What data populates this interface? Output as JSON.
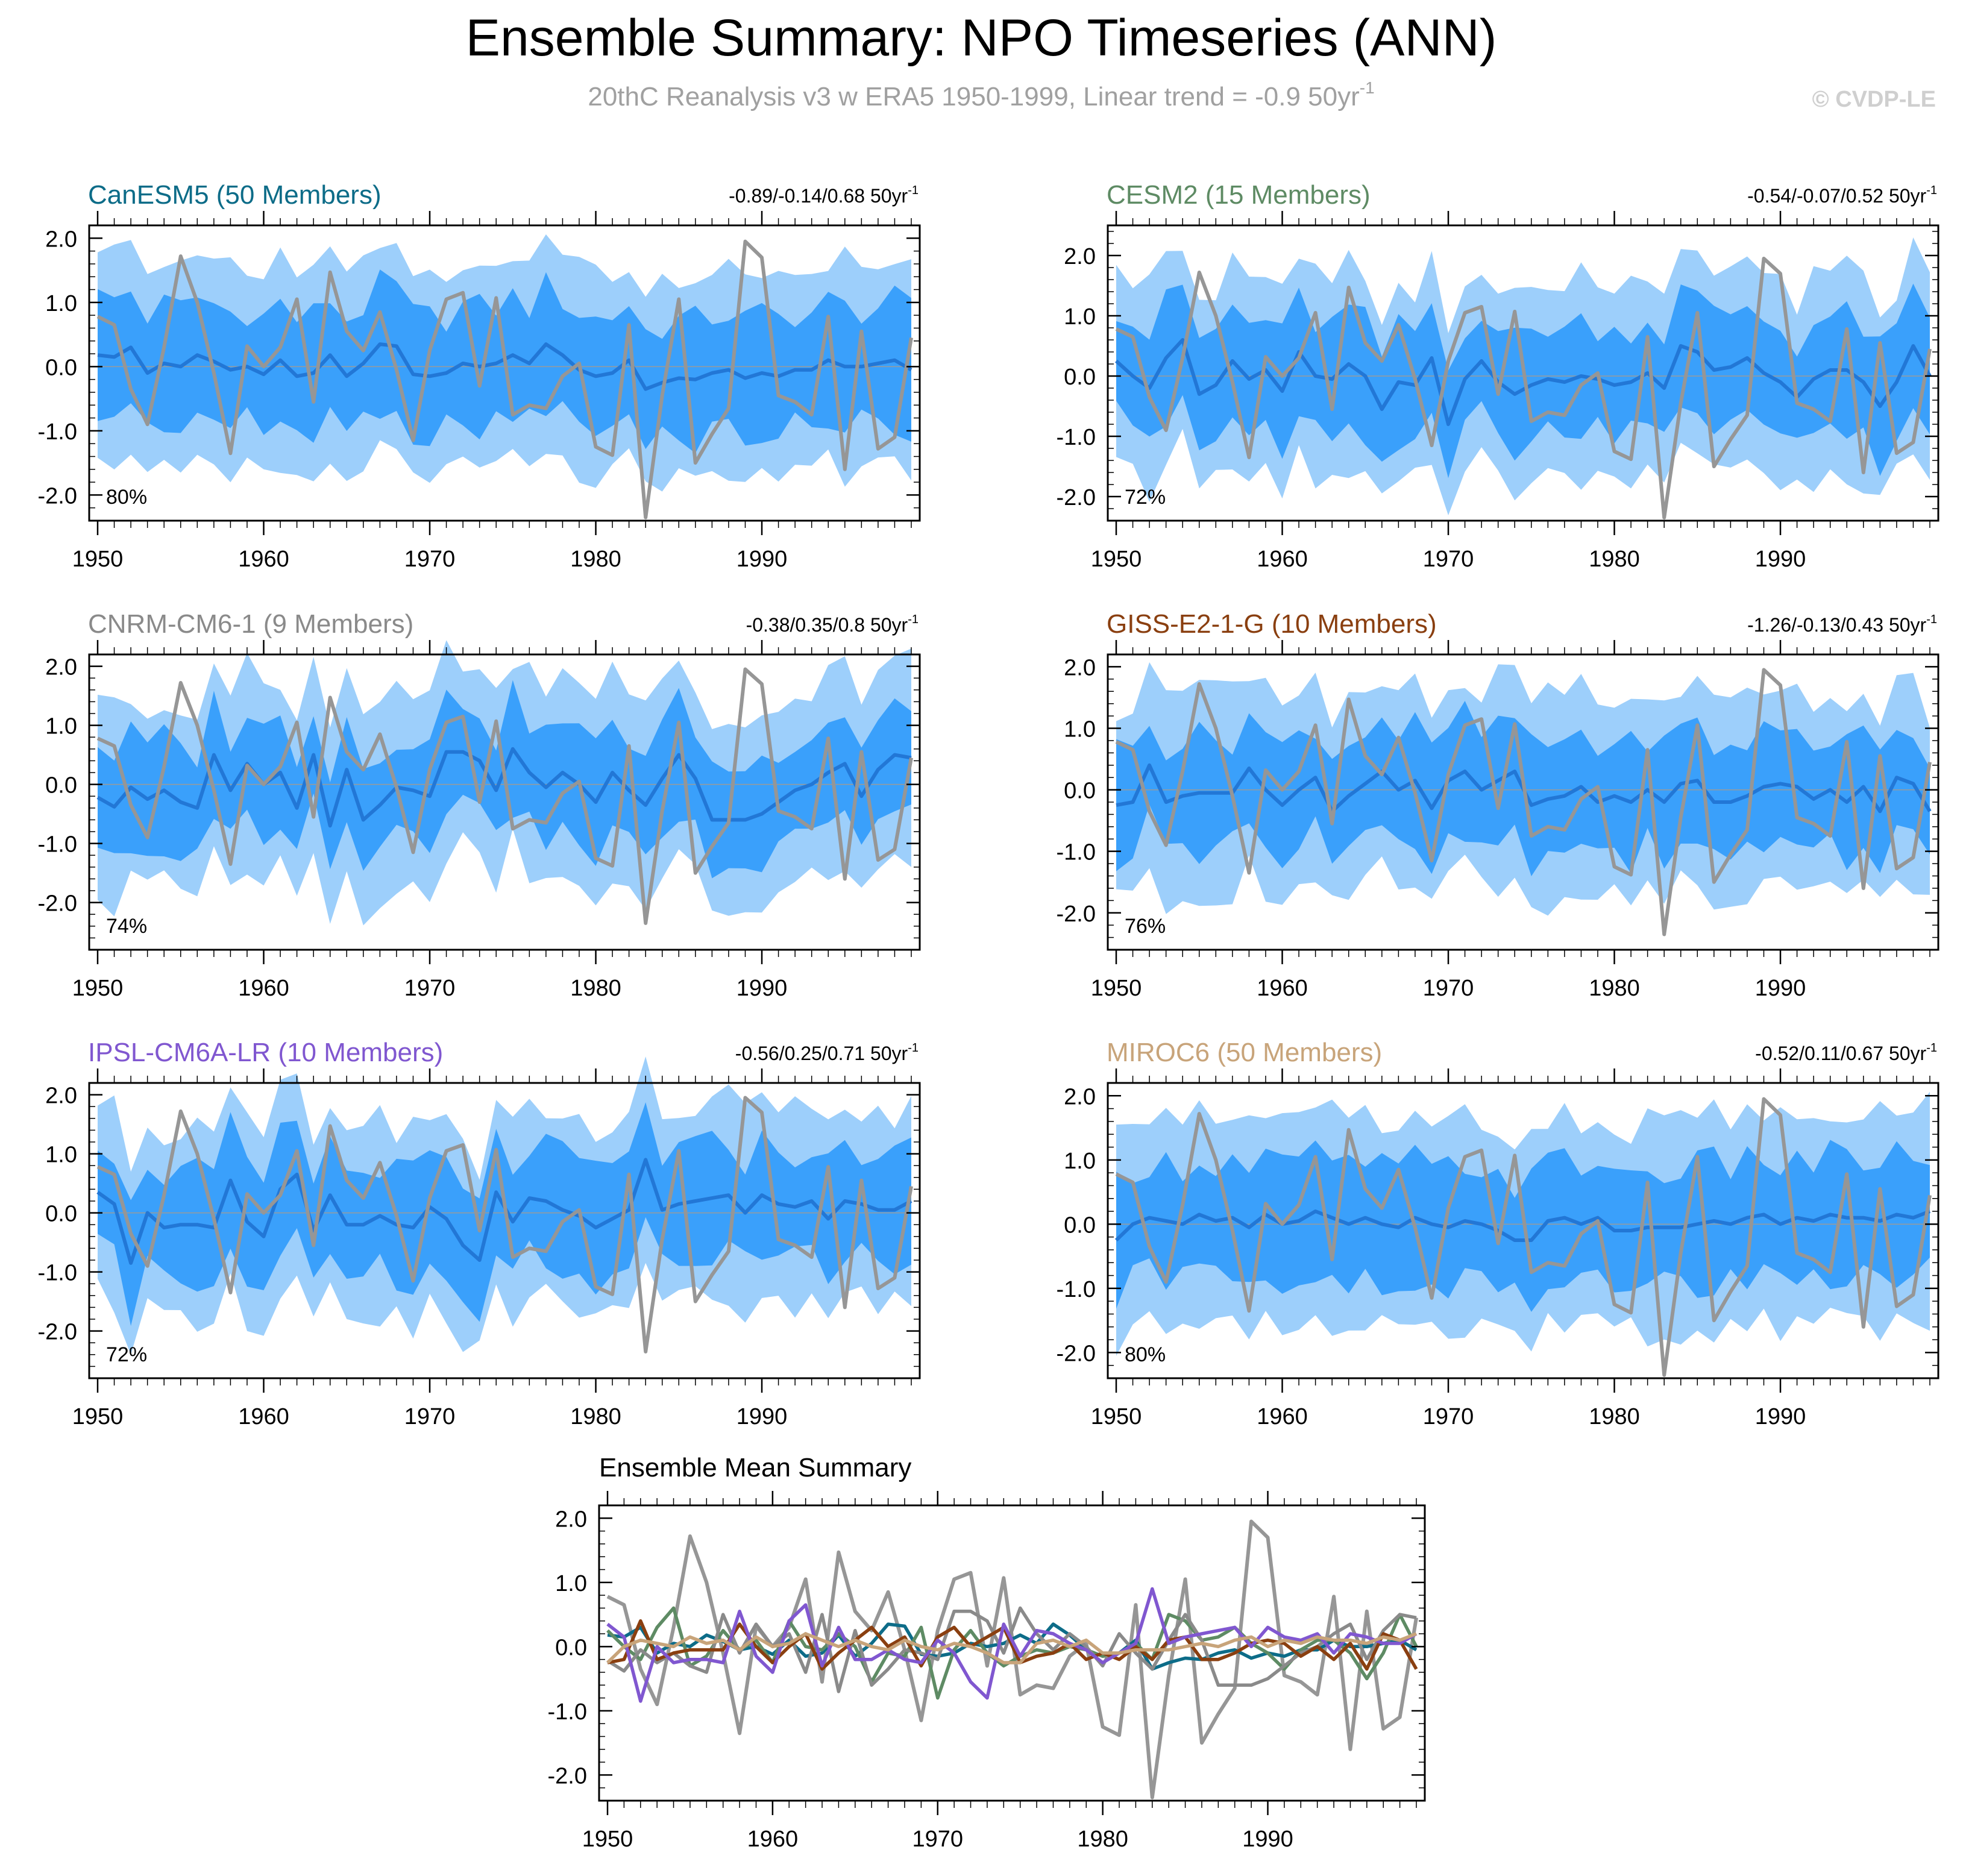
{
  "title": "Ensemble Summary: NPO Timeseries (ANN)",
  "subtitle": "20thC Reanalysis v3 w ERA5 1950-1999, Linear trend = -0.9 50yr",
  "subtitle_exp": "-1",
  "watermark": "© CVDP-LE",
  "colors": {
    "band_outer": "#9dcffb",
    "band_inner": "#3aa0fb",
    "ens_mean": "#2277d6",
    "observed": "#969696",
    "zero_line": "#9a9a9a",
    "frame": "#000000"
  },
  "chart_data": [
    {
      "type": "area",
      "model": "CanESM5",
      "members": "50",
      "label": "CanESM5 (50 Members)",
      "label_color": "#0d6c88",
      "trend": "-0.89/-0.14/0.68 50yr",
      "trend_exp": "-1",
      "pct": "80%",
      "x_start": 1950,
      "x_end": 1999,
      "xticks": [
        1950,
        1960,
        1970,
        1980,
        1990
      ],
      "yticks": [
        2.0,
        1.0,
        0.0,
        -1.0,
        -2.0
      ],
      "ytick_labels": [
        "2.0",
        "1.0",
        "0.0",
        "-1.0",
        "-2.0"
      ],
      "ylim": [
        -2.4,
        2.2
      ],
      "mean": [
        0.18,
        0.15,
        0.3,
        -0.1,
        0.05,
        0.0,
        0.18,
        0.08,
        -0.05,
        0.0,
        -0.12,
        0.1,
        -0.15,
        -0.1,
        0.18,
        -0.15,
        0.05,
        0.35,
        0.32,
        -0.12,
        -0.15,
        -0.1,
        0.05,
        0.0,
        0.05,
        0.18,
        0.05,
        0.35,
        0.18,
        -0.05,
        -0.15,
        -0.1,
        0.1,
        -0.35,
        -0.25,
        -0.18,
        -0.2,
        -0.1,
        -0.05,
        -0.18,
        -0.1,
        -0.15,
        -0.05,
        -0.05,
        0.1,
        0.0,
        0.0,
        0.05,
        0.1,
        -0.05
      ]
    },
    {
      "type": "area",
      "model": "CESM2",
      "members": "15",
      "label": "CESM2 (15 Members)",
      "label_color": "#5e8b64",
      "trend": "-0.54/-0.07/0.52 50yr",
      "trend_exp": "-1",
      "pct": "72%",
      "x_start": 1950,
      "x_end": 1999,
      "xticks": [
        1950,
        1960,
        1970,
        1980,
        1990
      ],
      "yticks": [
        2.0,
        1.0,
        0.0,
        -1.0,
        -2.0
      ],
      "ytick_labels": [
        "2.0",
        "1.0",
        "0.0",
        "-1.0",
        "-2.0"
      ],
      "ylim": [
        -2.4,
        2.5
      ],
      "mean": [
        0.25,
        0.0,
        -0.2,
        0.3,
        0.6,
        -0.3,
        -0.15,
        0.25,
        -0.05,
        0.1,
        -0.25,
        0.4,
        0.0,
        -0.05,
        0.2,
        0.0,
        -0.55,
        -0.1,
        -0.15,
        0.3,
        -0.8,
        -0.05,
        0.25,
        -0.1,
        -0.3,
        -0.15,
        -0.05,
        -0.1,
        0.0,
        -0.05,
        -0.15,
        -0.1,
        0.05,
        -0.2,
        0.5,
        0.4,
        0.1,
        0.15,
        0.3,
        0.05,
        -0.1,
        -0.35,
        -0.05,
        0.1,
        0.1,
        -0.1,
        -0.5,
        -0.1,
        0.5,
        0.0
      ]
    },
    {
      "type": "area",
      "model": "CNRM-CM6-1",
      "members": "9",
      "label": "CNRM-CM6-1 (9 Members)",
      "label_color": "#8a8a8a",
      "trend": "-0.38/0.35/0.8 50yr",
      "trend_exp": "-1",
      "pct": "74%",
      "x_start": 1950,
      "x_end": 1999,
      "xticks": [
        1950,
        1960,
        1970,
        1980,
        1990
      ],
      "yticks": [
        2.0,
        1.0,
        0.0,
        -1.0,
        -2.0
      ],
      "ytick_labels": [
        "2.0",
        "1.0",
        "0.0",
        "-1.0",
        "-2.0"
      ],
      "ylim": [
        -2.8,
        2.2
      ],
      "mean": [
        -0.22,
        -0.38,
        -0.05,
        -0.25,
        -0.1,
        -0.3,
        -0.4,
        0.5,
        -0.1,
        0.35,
        0.0,
        0.2,
        -0.4,
        0.5,
        -0.7,
        0.25,
        -0.6,
        -0.35,
        -0.05,
        -0.1,
        -0.2,
        0.55,
        0.55,
        0.4,
        -0.1,
        0.6,
        0.2,
        -0.05,
        0.2,
        0.0,
        -0.3,
        0.2,
        -0.1,
        -0.35,
        0.1,
        0.5,
        0.1,
        -0.6,
        -0.6,
        -0.6,
        -0.5,
        -0.3,
        -0.1,
        0.0,
        0.2,
        0.35,
        -0.2,
        0.25,
        0.5,
        0.45
      ]
    },
    {
      "type": "area",
      "model": "GISS-E2-1-G",
      "members": "10",
      "label": "GISS-E2-1-G (10 Members)",
      "label_color": "#8a3f10",
      "trend": "-1.26/-0.13/0.43 50yr",
      "trend_exp": "-1",
      "pct": "76%",
      "x_start": 1950,
      "x_end": 1999,
      "xticks": [
        1950,
        1960,
        1970,
        1980,
        1990
      ],
      "yticks": [
        2.0,
        1.0,
        0.0,
        -1.0,
        -2.0
      ],
      "ytick_labels": [
        "2.0",
        "1.0",
        "0.0",
        "-1.0",
        "-2.0"
      ],
      "ylim": [
        -2.6,
        2.2
      ],
      "mean": [
        -0.25,
        -0.2,
        0.4,
        -0.2,
        -0.1,
        -0.05,
        -0.05,
        -0.05,
        0.35,
        0.0,
        -0.25,
        0.0,
        0.2,
        -0.35,
        -0.1,
        0.1,
        0.3,
        0.0,
        0.15,
        -0.3,
        0.15,
        0.3,
        0.0,
        0.15,
        0.3,
        -0.25,
        -0.15,
        -0.1,
        0.05,
        -0.2,
        -0.1,
        -0.2,
        0.0,
        -0.2,
        0.1,
        0.15,
        -0.2,
        -0.2,
        -0.1,
        0.05,
        0.1,
        0.05,
        -0.15,
        0.0,
        -0.2,
        0.05,
        -0.35,
        0.2,
        0.1,
        -0.35
      ]
    },
    {
      "type": "area",
      "model": "IPSL-CM6A-LR",
      "members": "10",
      "label": "IPSL-CM6A-LR (10 Members)",
      "label_color": "#8057d0",
      "trend": "-0.56/0.25/0.71 50yr",
      "trend_exp": "-1",
      "pct": "72%",
      "x_start": 1950,
      "x_end": 1999,
      "xticks": [
        1950,
        1960,
        1970,
        1980,
        1990
      ],
      "yticks": [
        2.0,
        1.0,
        0.0,
        -1.0,
        -2.0
      ],
      "ytick_labels": [
        "2.0",
        "1.0",
        "0.0",
        "-1.0",
        "-2.0"
      ],
      "ylim": [
        -2.8,
        2.2
      ],
      "mean": [
        0.35,
        0.15,
        -0.85,
        0.0,
        -0.25,
        -0.2,
        -0.2,
        -0.25,
        0.55,
        -0.15,
        -0.4,
        0.4,
        0.65,
        -0.3,
        0.3,
        -0.2,
        -0.2,
        -0.05,
        -0.2,
        -0.25,
        0.1,
        -0.1,
        -0.55,
        -0.8,
        0.35,
        -0.15,
        0.25,
        0.2,
        0.05,
        -0.05,
        -0.25,
        -0.1,
        0.05,
        0.9,
        0.05,
        0.15,
        0.2,
        0.25,
        0.3,
        0.0,
        0.3,
        0.15,
        0.1,
        0.2,
        -0.1,
        0.2,
        0.15,
        0.05,
        0.05,
        0.2
      ]
    },
    {
      "type": "area",
      "model": "MIROC6",
      "members": "50",
      "label": "MIROC6 (50 Members)",
      "label_color": "#c8a47a",
      "trend": "-0.52/0.11/0.67 50yr",
      "trend_exp": "-1",
      "pct": "80%",
      "x_start": 1950,
      "x_end": 1999,
      "xticks": [
        1950,
        1960,
        1970,
        1980,
        1990
      ],
      "yticks": [
        2.0,
        1.0,
        0.0,
        -1.0,
        -2.0
      ],
      "ytick_labels": [
        "2.0",
        "1.0",
        "0.0",
        "-1.0",
        "-2.0"
      ],
      "ylim": [
        -2.4,
        2.2
      ],
      "mean": [
        -0.25,
        0.0,
        0.1,
        0.05,
        0.0,
        0.15,
        0.05,
        0.1,
        -0.05,
        0.15,
        0.0,
        0.05,
        0.2,
        0.1,
        0.0,
        0.1,
        0.0,
        -0.05,
        0.1,
        0.0,
        -0.05,
        0.05,
        0.0,
        -0.1,
        -0.25,
        -0.25,
        0.05,
        0.1,
        0.0,
        0.1,
        -0.1,
        -0.1,
        -0.05,
        -0.05,
        -0.05,
        0.0,
        0.05,
        0.0,
        0.1,
        0.15,
        0.0,
        0.1,
        0.05,
        0.15,
        0.1,
        0.1,
        0.05,
        0.15,
        0.1,
        0.2
      ]
    }
  ],
  "observed": [
    0.78,
    0.65,
    -0.35,
    -0.9,
    0.3,
    1.72,
    1.0,
    -0.1,
    -1.35,
    0.32,
    0.0,
    0.3,
    1.05,
    -0.55,
    1.47,
    0.55,
    0.25,
    0.85,
    -0.05,
    -1.15,
    0.25,
    1.05,
    1.15,
    -0.3,
    1.07,
    -0.75,
    -0.6,
    -0.65,
    -0.15,
    0.05,
    -1.25,
    -1.38,
    0.65,
    -2.35,
    -0.45,
    1.05,
    -1.5,
    -1.05,
    -0.65,
    1.95,
    1.7,
    -0.45,
    -0.55,
    -0.75,
    0.78,
    -1.6,
    0.55,
    -1.28,
    -1.1,
    0.45
  ],
  "summary": {
    "title": "Ensemble Mean Summary",
    "x_start": 1950,
    "x_end": 1999,
    "xticks": [
      1950,
      1960,
      1970,
      1980,
      1990
    ],
    "yticks": [
      2.0,
      1.0,
      0.0,
      -1.0,
      -2.0
    ],
    "ytick_labels": [
      "2.0",
      "1.0",
      "0.0",
      "-1.0",
      "-2.0"
    ],
    "ylim": [
      -2.4,
      2.2
    ]
  }
}
